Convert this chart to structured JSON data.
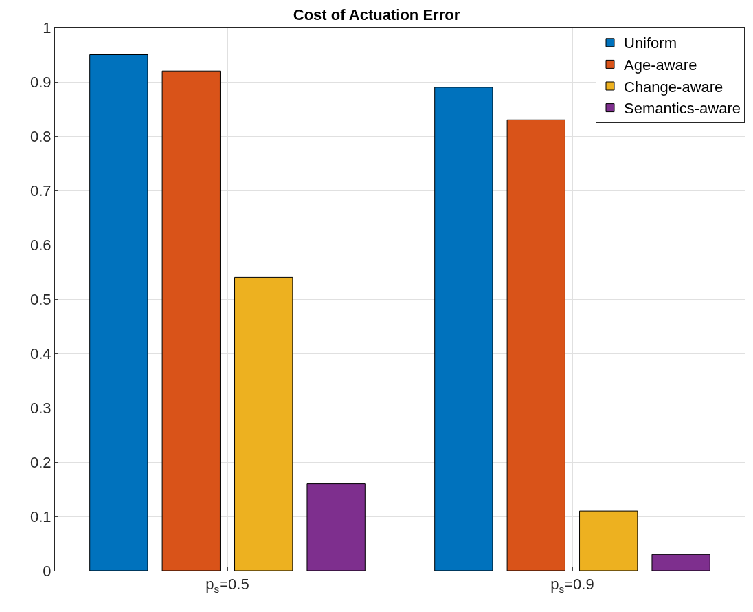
{
  "chart_data": {
    "type": "bar",
    "title": "Cost of Actuation Error",
    "categories": [
      "p$_{s}$=0.5",
      "p$_{s}$=0.9"
    ],
    "series": [
      {
        "name": "Uniform",
        "color": "#0072bd",
        "values": [
          0.95,
          0.89
        ]
      },
      {
        "name": "Age-aware",
        "color": "#d95319",
        "values": [
          0.92,
          0.83
        ]
      },
      {
        "name": "Change-aware",
        "color": "#edb120",
        "values": [
          0.54,
          0.11
        ]
      },
      {
        "name": "Semantics-aware",
        "color": "#7e2f8e",
        "values": [
          0.16,
          0.03
        ]
      }
    ],
    "ylim": [
      0,
      1
    ],
    "yticks": [
      0,
      0.1,
      0.2,
      0.3,
      0.4,
      0.5,
      0.6,
      0.7,
      0.8,
      0.9,
      1
    ],
    "grid": true,
    "legend": "top right"
  }
}
